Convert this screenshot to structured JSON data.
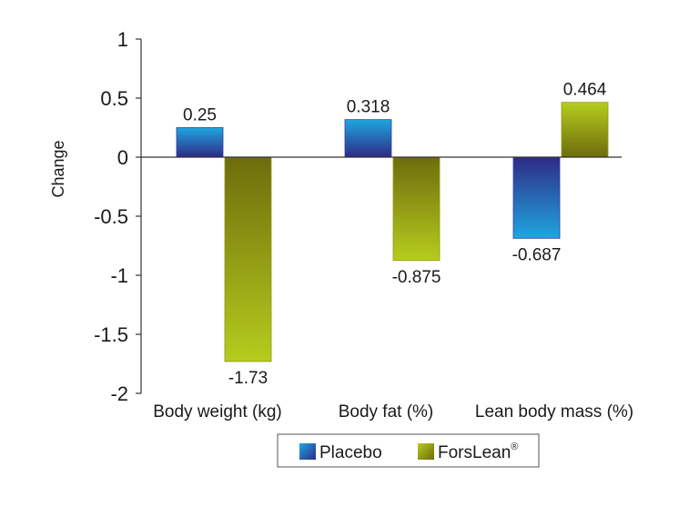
{
  "chart_data": {
    "type": "bar",
    "title": "",
    "xlabel": "",
    "ylabel": "Change",
    "ylim": [
      -2,
      1
    ],
    "yticks": [
      1,
      0.5,
      0,
      -0.5,
      -1,
      -1.5,
      -2
    ],
    "ytick_labels": [
      "1",
      "0.5",
      "0",
      "-0.5",
      "-1",
      "-1.5",
      "-2"
    ],
    "grid": false,
    "legend_position": "bottom-center",
    "categories": [
      "Body weight (kg)",
      "Body fat (%)",
      "Lean body mass (%)"
    ],
    "series": [
      {
        "name": "Placebo",
        "values": [
          0.25,
          0.318,
          -0.687
        ],
        "value_labels": [
          "0.25",
          "0.318",
          "-0.687"
        ],
        "color_dark": "#2e2b86",
        "color_light": "#1fa6e0"
      },
      {
        "name": "ForsLean",
        "name_superscript": "®",
        "values": [
          -1.73,
          -0.875,
          0.464
        ],
        "value_labels": [
          "-1.73",
          "-0.875",
          "0.464"
        ],
        "color_dark": "#6e6c0c",
        "color_light": "#b6cc1e"
      }
    ]
  }
}
